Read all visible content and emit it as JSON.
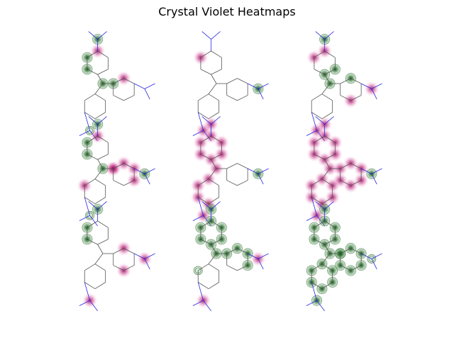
{
  "title": "Crystal Violet Heatmaps",
  "colors": {
    "positive": "#1b6a1b",
    "negative": "#8e0152",
    "bond": "#555555",
    "nitrogen": "#2a2ae0"
  },
  "panels": [
    [
      {
        "row": 1,
        "col": 1,
        "green": [
          "n1",
          "ca2",
          "ca3",
          "cc",
          "ct"
        ],
        "pink": [
          "cb1",
          "ca4"
        ],
        "greenRings": [
          "n3"
        ]
      },
      {
        "row": 1,
        "col": 2,
        "green": [
          "n2"
        ],
        "pink": [
          "n3",
          "ca3"
        ],
        "greenRings": []
      },
      {
        "row": 1,
        "col": 3,
        "green": [
          "n1",
          "ca1",
          "ca6",
          "cc",
          "cb1"
        ],
        "pink": [
          "ca3",
          "ca4",
          "n2",
          "cb4",
          "n3"
        ],
        "greenRings": []
      }
    ],
    [
      {
        "row": 2,
        "col": 1,
        "green": [
          "n1",
          "ca2",
          "ca3",
          "n2",
          "cc"
        ],
        "pink": [
          "ca4",
          "cb1",
          "cb2",
          "cb3",
          "cb6",
          "ct",
          "cc2"
        ],
        "greenRings": [
          "n3"
        ]
      },
      {
        "row": 2,
        "col": 2,
        "green": [
          "n2"
        ],
        "pink": [
          "ca1",
          "ca2",
          "ca3",
          "ca4",
          "ca5",
          "ca6",
          "cc",
          "cc1",
          "cc2",
          "cc3",
          "cc4",
          "n1",
          "n3"
        ],
        "greenRings": []
      },
      {
        "row": 2,
        "col": 3,
        "green": [
          "n2"
        ],
        "pink": [
          "ca1",
          "ca2",
          "ca3",
          "ca4",
          "ca5",
          "ca6",
          "cc",
          "cb1",
          "cb2",
          "cb3",
          "cb4",
          "cb5",
          "cb6",
          "cc1",
          "cc2",
          "cc3",
          "cc4",
          "cc5",
          "cc6",
          "n1",
          "n3"
        ],
        "greenRings": []
      }
    ],
    [
      {
        "row": 3,
        "col": 1,
        "green": [
          "ca2",
          "ca3",
          "n1"
        ],
        "pink": [
          "cb1",
          "cb4",
          "n2",
          "n3"
        ],
        "greenRings": []
      },
      {
        "row": 3,
        "col": 2,
        "green": [
          "n1",
          "ca1",
          "ca2",
          "ca3",
          "ca4",
          "ca5",
          "ca6",
          "cc",
          "ct",
          "cb1",
          "cb2",
          "cb3"
        ],
        "pink": [
          "n2",
          "n3"
        ],
        "greenRings": [
          "cc2"
        ]
      },
      {
        "row": 3,
        "col": 3,
        "green": [
          "n1",
          "ca1",
          "ca2",
          "ca3",
          "ca4",
          "ca5",
          "ca6",
          "cc",
          "ct",
          "cb1",
          "cb2",
          "cb3",
          "cb4",
          "cb5",
          "cb6",
          "cc1",
          "cc2",
          "cc3",
          "cc4",
          "cc5",
          "cc6",
          "n3"
        ],
        "pink": [],
        "greenRings": [
          "n2"
        ]
      }
    ]
  ]
}
